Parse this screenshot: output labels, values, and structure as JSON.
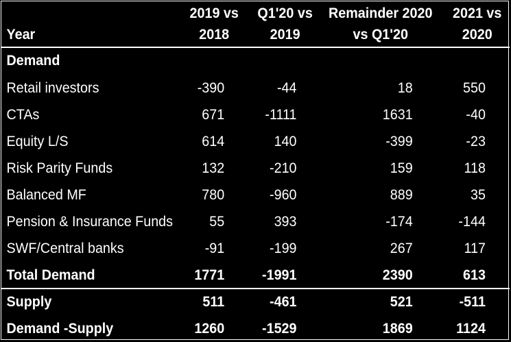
{
  "header": {
    "year_label": "Year",
    "columns": [
      {
        "line1": "2019 vs",
        "line2": "2018"
      },
      {
        "line1": "Q1'20 vs",
        "line2": "2019"
      },
      {
        "line1": "Remainder 2020",
        "line2": "vs Q1'20"
      },
      {
        "line1": "2021 vs",
        "line2": "2020"
      }
    ]
  },
  "section": {
    "demand_title": "Demand"
  },
  "rows": [
    {
      "label": "Retail investors",
      "values": [
        "-390",
        "-44",
        "18",
        "550"
      ]
    },
    {
      "label": "CTAs",
      "values": [
        "671",
        "-1111",
        "1631",
        "-40"
      ]
    },
    {
      "label": "Equity L/S",
      "values": [
        "614",
        "140",
        "-399",
        "-23"
      ]
    },
    {
      "label": "Risk Parity Funds",
      "values": [
        "132",
        "-210",
        "159",
        "118"
      ]
    },
    {
      "label": "Balanced MF",
      "values": [
        "780",
        "-960",
        "889",
        "35"
      ]
    },
    {
      "label": "Pension & Insurance Funds",
      "values": [
        "55",
        "393",
        "-174",
        "-144"
      ]
    },
    {
      "label": "SWF/Central banks",
      "values": [
        "-91",
        "-199",
        "267",
        "117"
      ]
    }
  ],
  "totals": {
    "total_demand": {
      "label": "Total Demand",
      "values": [
        "1771",
        "-1991",
        "2390",
        "613"
      ]
    },
    "supply": {
      "label": "Supply",
      "values": [
        "511",
        "-461",
        "521",
        "-511"
      ]
    },
    "demand_minus_supply": {
      "label": "Demand -Supply",
      "values": [
        "1260",
        "-1529",
        "1869",
        "1124"
      ]
    }
  },
  "colors": {
    "background": "#000000",
    "text": "#ffffff",
    "rule": "#ffffff"
  }
}
